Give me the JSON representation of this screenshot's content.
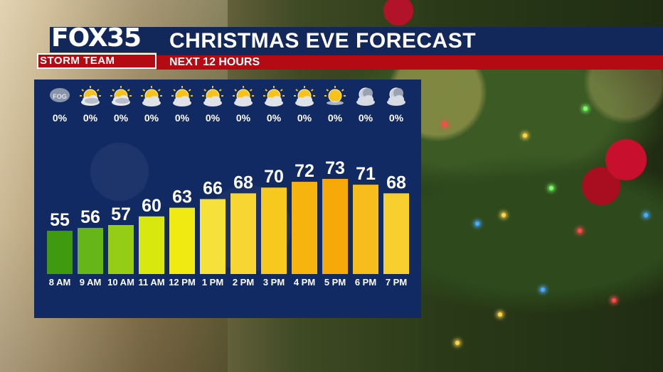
{
  "header": {
    "logo_fox": "FOX",
    "logo_number": "35",
    "logo_team": "STORM TEAM",
    "title": "CHRISTMAS EVE FORECAST",
    "subtitle": "NEXT 12 HOURS"
  },
  "colors": {
    "title_bar": "#13285a",
    "subtitle_bar": "#b30a14",
    "panel": "#122a63"
  },
  "chart_data": {
    "type": "bar",
    "categories": [
      "8 AM",
      "9 AM",
      "10 AM",
      "11 AM",
      "12 PM",
      "1 PM",
      "2 PM",
      "3 PM",
      "4 PM",
      "5 PM",
      "6 PM",
      "7 PM"
    ],
    "values": [
      55,
      56,
      57,
      60,
      63,
      66,
      68,
      70,
      72,
      73,
      71,
      68
    ],
    "precip": [
      "0%",
      "0%",
      "0%",
      "0%",
      "0%",
      "0%",
      "0%",
      "0%",
      "0%",
      "0%",
      "0%",
      "0%"
    ],
    "icons": [
      "fog-icon",
      "partly-cloudy-icon",
      "partly-cloudy-icon",
      "partly-sunny-icon",
      "partly-sunny-icon",
      "partly-sunny-icon",
      "partly-sunny-icon",
      "partly-sunny-icon",
      "partly-sunny-icon",
      "sunny-icon",
      "cloudy-moon-icon",
      "cloudy-moon-icon"
    ],
    "fog_label": "FOG",
    "bar_colors": [
      "#3f9a10",
      "#66b61a",
      "#94cc16",
      "#d8e80e",
      "#f0ea12",
      "#f6e13a",
      "#f7d634",
      "#f7c81e",
      "#f8b40e",
      "#f8a90a",
      "#f7bd1c",
      "#f7d030"
    ],
    "title": "",
    "xlabel": "",
    "ylabel": ""
  }
}
